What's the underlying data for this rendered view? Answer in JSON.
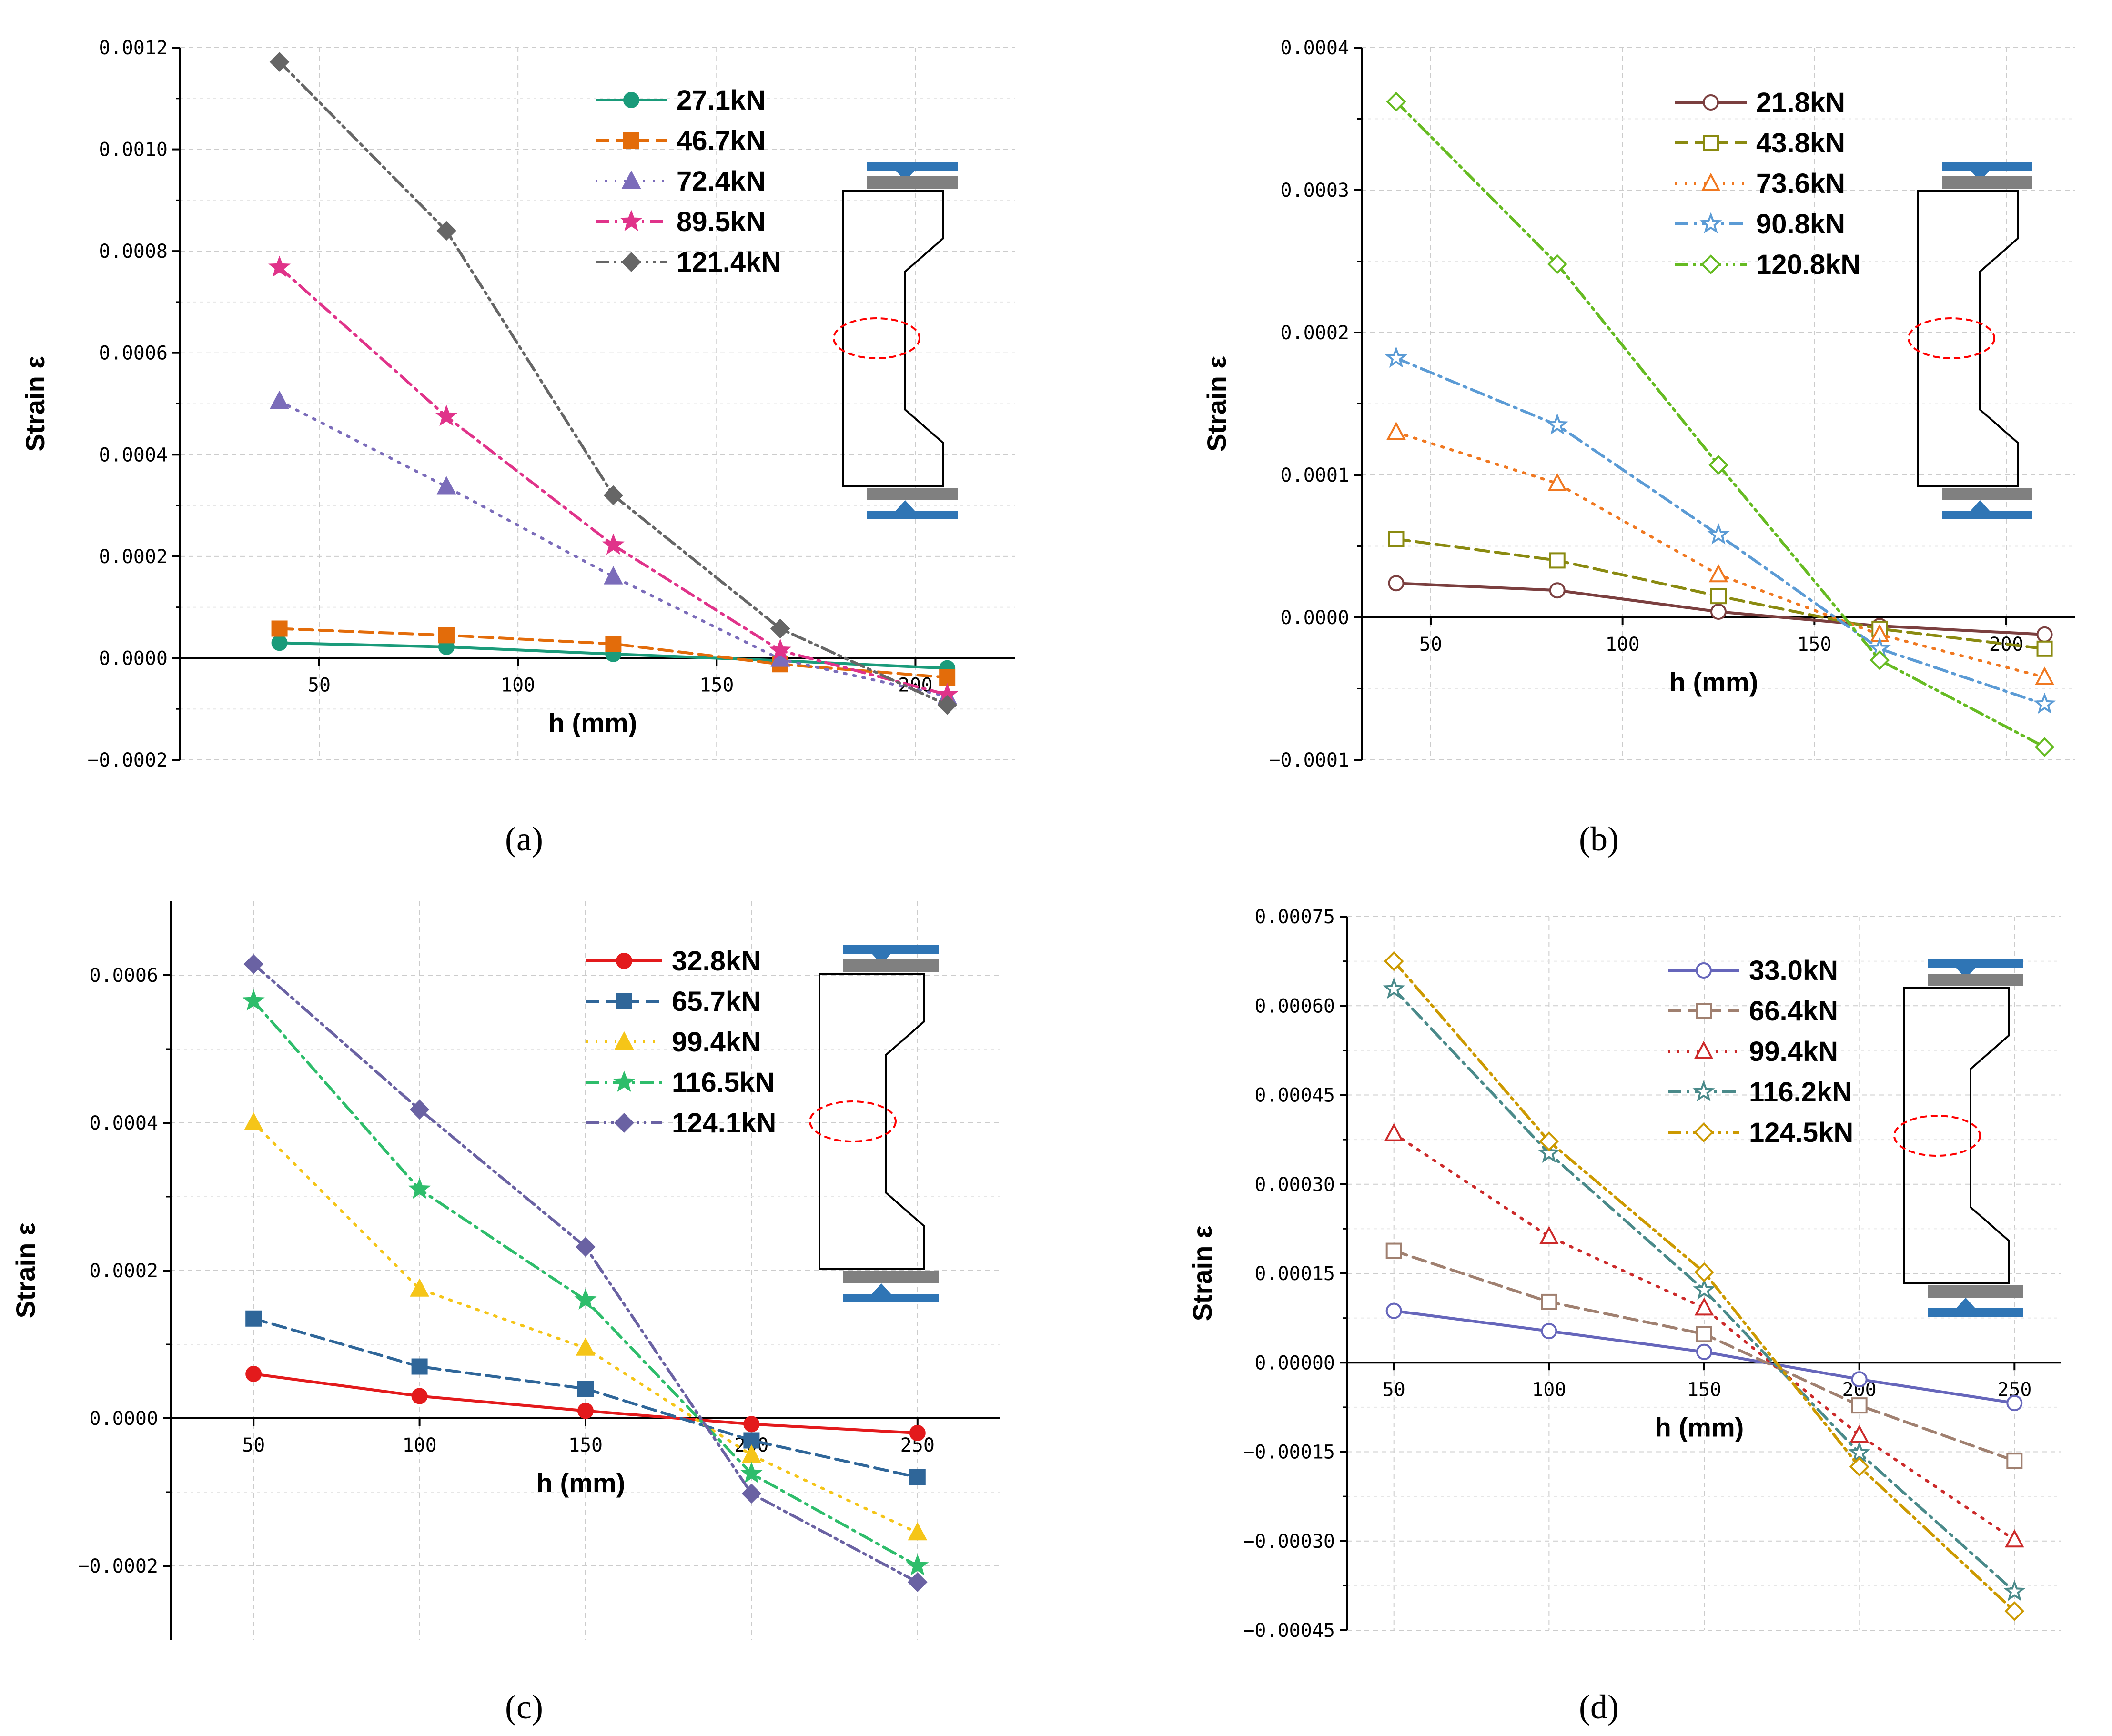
{
  "colors": {
    "grid": "#cccccc",
    "axis": "#000000",
    "specimen_blue": "#2f75b5",
    "specimen_gray": "#808080",
    "gauge_marker": "#ff0000"
  },
  "chart_data": [
    {
      "id": "a",
      "type": "line",
      "label": "(a)",
      "xlabel": "h (mm)",
      "ylabel": "Strain ε",
      "xlim": [
        15,
        225
      ],
      "ylim": [
        -0.0002,
        0.0012
      ],
      "xticks": [
        50,
        100,
        150,
        200
      ],
      "xtick_labels": [
        "50",
        "100",
        "150",
        "200"
      ],
      "yticks": [
        -0.0002,
        0,
        0.0002,
        0.0004,
        0.0006,
        0.0008,
        0.001,
        0.0012
      ],
      "ytick_labels": [
        "−0.0002",
        "0.0000",
        "0.0002",
        "0.0004",
        "0.0006",
        "0.0008",
        "0.0010",
        "0.0012"
      ],
      "grid": true,
      "legend_position": "top-right",
      "x": [
        40,
        82,
        124,
        166,
        208
      ],
      "series": [
        {
          "name": "27.1kN",
          "color": "#1a9b7a",
          "marker": "circle",
          "filled": true,
          "dash": "solid",
          "values": [
            3e-05,
            2.2e-05,
            8e-06,
            -5e-06,
            -2e-05
          ]
        },
        {
          "name": "46.7kN",
          "color": "#e36c0a",
          "marker": "square",
          "filled": true,
          "dash": "dash",
          "values": [
            5.8e-05,
            4.5e-05,
            2.8e-05,
            -1.2e-05,
            -3.8e-05
          ]
        },
        {
          "name": "72.4kN",
          "color": "#7b6cba",
          "marker": "triangle",
          "filled": true,
          "dash": "dot",
          "values": [
            0.000505,
            0.000337,
            0.00016,
            -2e-06,
            -7.5e-05
          ]
        },
        {
          "name": "89.5kN",
          "color": "#e0338a",
          "marker": "star",
          "filled": true,
          "dash": "dashdot",
          "values": [
            0.000768,
            0.000475,
            0.000222,
            1.5e-05,
            -7.2e-05
          ]
        },
        {
          "name": "121.4kN",
          "color": "#666666",
          "marker": "diamond",
          "filled": true,
          "dash": "dashdotdot",
          "values": [
            0.001172,
            0.00084,
            0.00032,
            5.8e-05,
            -9.2e-05
          ]
        }
      ]
    },
    {
      "id": "b",
      "type": "line",
      "label": "(b)",
      "xlabel": "h (mm)",
      "ylabel": "Strain ε",
      "xlim": [
        32,
        218
      ],
      "ylim": [
        -0.0001,
        0.0004
      ],
      "xticks": [
        50,
        100,
        150,
        200
      ],
      "xtick_labels": [
        "50",
        "100",
        "150",
        "200"
      ],
      "yticks": [
        -0.0001,
        0,
        0.0001,
        0.0002,
        0.0003,
        0.0004
      ],
      "ytick_labels": [
        "−0.0001",
        "0.0000",
        "0.0001",
        "0.0002",
        "0.0003",
        "0.0004"
      ],
      "grid": true,
      "legend_position": "top-right",
      "x": [
        41,
        83,
        125,
        167,
        210
      ],
      "series": [
        {
          "name": "21.8kN",
          "color": "#7b3f3f",
          "marker": "circle",
          "filled": false,
          "dash": "solid",
          "values": [
            2.4e-05,
            1.9e-05,
            4e-06,
            -6e-06,
            -1.2e-05
          ]
        },
        {
          "name": "43.8kN",
          "color": "#8a8a10",
          "marker": "square",
          "filled": false,
          "dash": "dash",
          "values": [
            5.5e-05,
            4e-05,
            1.5e-05,
            -8e-06,
            -2.2e-05
          ]
        },
        {
          "name": "73.6kN",
          "color": "#f07820",
          "marker": "triangle",
          "filled": false,
          "dash": "dot",
          "values": [
            0.00013,
            9.4e-05,
            3e-05,
            -1.2e-05,
            -4.2e-05
          ]
        },
        {
          "name": "90.8kN",
          "color": "#5b9bd5",
          "marker": "star",
          "filled": false,
          "dash": "dashdot",
          "values": [
            0.000182,
            0.000135,
            5.8e-05,
            -2.2e-05,
            -6.1e-05
          ]
        },
        {
          "name": "120.8kN",
          "color": "#66bb22",
          "marker": "diamond",
          "filled": false,
          "dash": "dashdotdot",
          "values": [
            0.000362,
            0.000248,
            0.000107,
            -3e-05,
            -9.1e-05
          ]
        }
      ]
    },
    {
      "id": "c",
      "type": "line",
      "label": "(c)",
      "xlabel": "h (mm)",
      "ylabel": "Strain ε",
      "xlim": [
        25,
        275
      ],
      "ylim": [
        -0.0003,
        0.0007
      ],
      "xticks": [
        50,
        100,
        150,
        200,
        250
      ],
      "xtick_labels": [
        "50",
        "100",
        "150",
        "200",
        "250"
      ],
      "yticks": [
        -0.0002,
        0,
        0.0002,
        0.0004,
        0.0006
      ],
      "ytick_labels": [
        "−0.0002",
        "0.0000",
        "0.0002",
        "0.0004",
        "0.0006"
      ],
      "grid": true,
      "legend_position": "top-right",
      "x": [
        50,
        100,
        150,
        200,
        250
      ],
      "series": [
        {
          "name": "32.8kN",
          "color": "#e31a1c",
          "marker": "circle",
          "filled": true,
          "dash": "solid",
          "values": [
            6e-05,
            3e-05,
            1e-05,
            -8e-06,
            -2e-05
          ]
        },
        {
          "name": "65.7kN",
          "color": "#2f6699",
          "marker": "square",
          "filled": true,
          "dash": "dash",
          "values": [
            0.000135,
            7e-05,
            4e-05,
            -3e-05,
            -8e-05
          ]
        },
        {
          "name": "99.4kN",
          "color": "#f5c518",
          "marker": "triangle",
          "filled": true,
          "dash": "dot",
          "values": [
            0.0004,
            0.000175,
            9.5e-05,
            -5e-05,
            -0.000155
          ]
        },
        {
          "name": "116.5kN",
          "color": "#2ebd6b",
          "marker": "star",
          "filled": true,
          "dash": "dashdot",
          "values": [
            0.000565,
            0.00031,
            0.00016,
            -7.5e-05,
            -0.0002
          ]
        },
        {
          "name": "124.1kN",
          "color": "#6a62a3",
          "marker": "diamond",
          "filled": true,
          "dash": "dashdotdot",
          "values": [
            0.000615,
            0.000418,
            0.000232,
            -0.000102,
            -0.000222
          ]
        }
      ]
    },
    {
      "id": "d",
      "type": "line",
      "label": "(d)",
      "xlabel": "h (mm)",
      "ylabel": "Strain ε",
      "xlim": [
        35,
        265
      ],
      "ylim": [
        -0.00045,
        0.00075
      ],
      "xticks": [
        50,
        100,
        150,
        200,
        250
      ],
      "xtick_labels": [
        "50",
        "100",
        "150",
        "200",
        "250"
      ],
      "yticks": [
        -0.00045,
        -0.0003,
        -0.00015,
        0,
        0.00015,
        0.0003,
        0.00045,
        0.0006,
        0.00075
      ],
      "ytick_labels": [
        "−0.00045",
        "−0.00030",
        "−0.00015",
        "0.00000",
        "0.00015",
        "0.00030",
        "0.00045",
        "0.00060",
        "0.00075"
      ],
      "grid": true,
      "legend_position": "top-right",
      "x": [
        50,
        100,
        150,
        200,
        250
      ],
      "series": [
        {
          "name": "33.0kN",
          "color": "#6666bb",
          "marker": "circle",
          "filled": false,
          "dash": "solid",
          "values": [
            8.7e-05,
            5.3e-05,
            1.8e-05,
            -2.8e-05,
            -6.8e-05
          ]
        },
        {
          "name": "66.4kN",
          "color": "#a08070",
          "marker": "square",
          "filled": false,
          "dash": "dash",
          "values": [
            0.000188,
            0.000102,
            4.8e-05,
            -7.2e-05,
            -0.000165
          ]
        },
        {
          "name": "99.4kN",
          "color": "#cc2a2a",
          "marker": "triangle",
          "filled": false,
          "dash": "dot",
          "values": [
            0.000385,
            0.000212,
            9.2e-05,
            -0.000122,
            -0.000298
          ]
        },
        {
          "name": "116.2kN",
          "color": "#4a8a8a",
          "marker": "star",
          "filled": false,
          "dash": "dashdot",
          "values": [
            0.000628,
            0.000352,
            0.000122,
            -0.000152,
            -0.000385
          ]
        },
        {
          "name": "124.5kN",
          "color": "#cc9900",
          "marker": "diamond",
          "filled": false,
          "dash": "dashdotdot",
          "values": [
            0.000675,
            0.000372,
            0.000152,
            -0.000175,
            -0.000418
          ]
        }
      ]
    }
  ]
}
